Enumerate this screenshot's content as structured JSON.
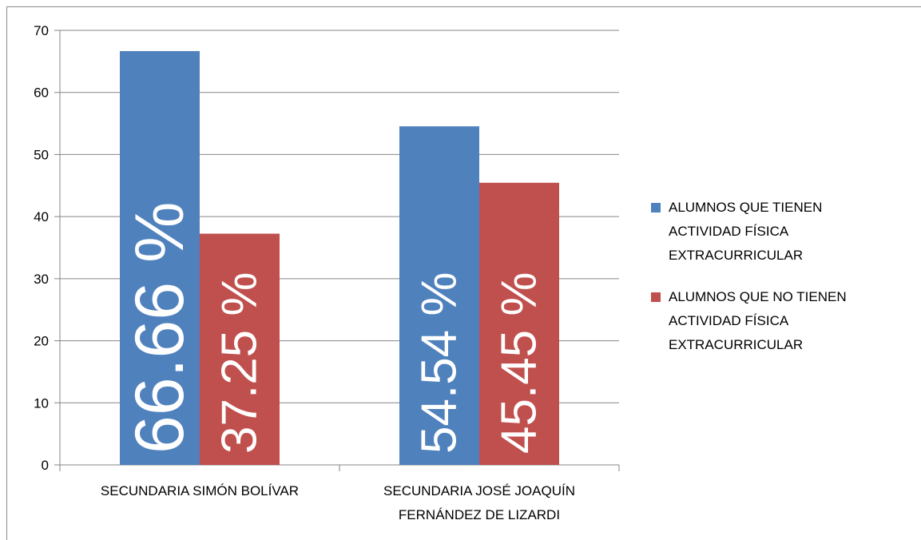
{
  "chart_data": {
    "type": "bar",
    "categories": [
      "SECUNDARIA SIMÓN BOLÍVAR",
      "SECUNDARIA JOSÉ JOAQUÍN FERNÁNDEZ DE LIZARDI"
    ],
    "series": [
      {
        "name": "ALUMNOS QUE TIENEN ACTIVIDAD FÍSICA EXTRACURRICULAR",
        "color": "#4f81bd",
        "values": [
          66.66,
          54.54
        ],
        "value_labels": [
          "66.66 %",
          "54.54 %"
        ]
      },
      {
        "name": "ALUMNOS QUE NO TIENEN ACTIVIDAD FÍSICA EXTRACURRICULAR",
        "color": "#c0504d",
        "values": [
          37.25,
          45.45
        ],
        "value_labels": [
          "37.25 %",
          "45.45 %"
        ]
      }
    ],
    "ylim": [
      0,
      70
    ],
    "yticks": [
      0,
      10,
      20,
      30,
      40,
      50,
      60,
      70
    ],
    "grid": true,
    "legend": "right"
  }
}
